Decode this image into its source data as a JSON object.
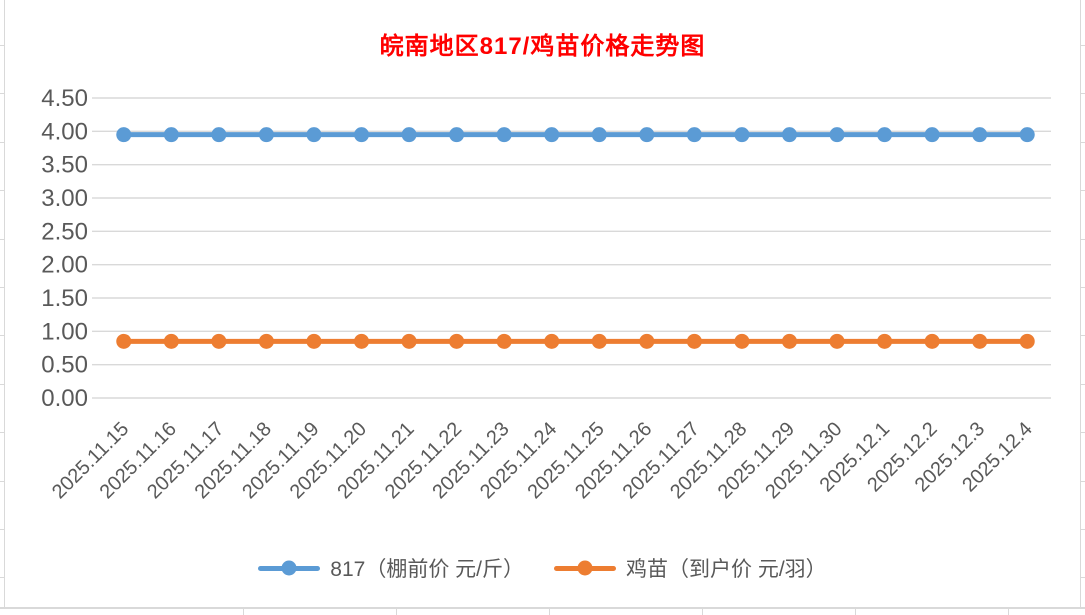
{
  "chart_data": {
    "type": "line",
    "title": "皖南地区817/鸡苗价格走势图",
    "title_color": "#FF0000",
    "xlabel": "",
    "ylabel": "",
    "categories": [
      "2025.11.15",
      "2025.11.16",
      "2025.11.17",
      "2025.11.18",
      "2025.11.19",
      "2025.11.20",
      "2025.11.21",
      "2025.11.22",
      "2025.11.23",
      "2025.11.24",
      "2025.11.25",
      "2025.11.26",
      "2025.11.27",
      "2025.11.28",
      "2025.11.29",
      "2025.11.30",
      "2025.12.1",
      "2025.12.2",
      "2025.12.3",
      "2025.12.4"
    ],
    "series": [
      {
        "name": "817（棚前价 元/斤）",
        "color": "#5B9BD5",
        "values": [
          3.95,
          3.95,
          3.95,
          3.95,
          3.95,
          3.95,
          3.95,
          3.95,
          3.95,
          3.95,
          3.95,
          3.95,
          3.95,
          3.95,
          3.95,
          3.95,
          3.95,
          3.95,
          3.95,
          3.95
        ]
      },
      {
        "name": "鸡苗（到户价 元/羽）",
        "color": "#ED7D31",
        "values": [
          0.85,
          0.85,
          0.85,
          0.85,
          0.85,
          0.85,
          0.85,
          0.85,
          0.85,
          0.85,
          0.85,
          0.85,
          0.85,
          0.85,
          0.85,
          0.85,
          0.85,
          0.85,
          0.85,
          0.85
        ]
      }
    ],
    "ylim": [
      0,
      4.5
    ],
    "y_step": 0.5,
    "y_tick_labels": [
      "4.50",
      "4.00",
      "3.50",
      "3.00",
      "2.50",
      "2.00",
      "1.50",
      "1.00",
      "0.50",
      "0.00"
    ],
    "grid": true,
    "gridline_color": "#D9D9D9",
    "axis_label_color": "#595959",
    "x_label_rotation": -45,
    "legend_position": "bottom"
  },
  "legend": {
    "items": [
      {
        "label": "817（棚前价 元/斤）",
        "color": "#5B9BD5"
      },
      {
        "label": "鸡苗（到户价 元/羽）",
        "color": "#ED7D31"
      }
    ]
  }
}
